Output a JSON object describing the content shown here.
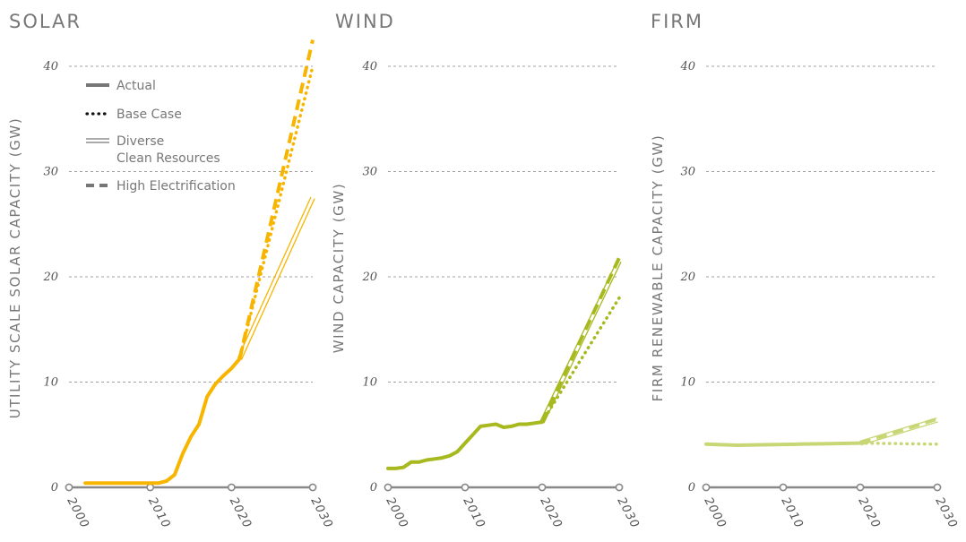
{
  "chart_data": [
    {
      "type": "line",
      "title": "SOLAR",
      "ylabel": "UTILITY SCALE SOLAR CAPACITY (GW)",
      "xlabel": "",
      "xlim": [
        2000,
        2030
      ],
      "ylim": [
        0,
        40
      ],
      "xticks": [
        "2000",
        "2010",
        "2020",
        "2030"
      ],
      "yticks": [
        "0",
        "10",
        "20",
        "30",
        "40"
      ],
      "grid": true,
      "color": "#f7b500",
      "legend": [
        {
          "label": "Actual",
          "style": "solid"
        },
        {
          "label": "Base Case",
          "style": "dotted"
        },
        {
          "label": "Diverse\nClean Resources",
          "style": "double"
        },
        {
          "label": "High Electrification",
          "style": "dashed"
        }
      ],
      "legend_placement": "top-left",
      "series": [
        {
          "name": "Actual",
          "style": "solid",
          "x": [
            2002,
            2005,
            2008,
            2011,
            2012,
            2013,
            2014,
            2015,
            2016,
            2017,
            2018,
            2019,
            2020,
            2021
          ],
          "y": [
            0.4,
            0.4,
            0.4,
            0.4,
            0.6,
            1.2,
            3.2,
            4.8,
            6.0,
            8.6,
            9.8,
            10.6,
            11.3,
            12.2
          ]
        },
        {
          "name": "Base Case",
          "style": "dotted",
          "x": [
            2021,
            2030
          ],
          "y": [
            12.2,
            40.0
          ]
        },
        {
          "name": "Diverse Clean Resources",
          "style": "double",
          "x": [
            2021,
            2030
          ],
          "y": [
            12.2,
            27.5
          ]
        },
        {
          "name": "High Electrification",
          "style": "dashed",
          "x": [
            2021,
            2030
          ],
          "y": [
            12.2,
            42.5
          ]
        }
      ]
    },
    {
      "type": "line",
      "title": "WIND",
      "ylabel": "WIND CAPACITY (GW)",
      "xlabel": "",
      "xlim": [
        2000,
        2030
      ],
      "ylim": [
        0,
        40
      ],
      "xticks": [
        "2000",
        "2010",
        "2020",
        "2030"
      ],
      "yticks": [
        "0",
        "10",
        "20",
        "30",
        "40"
      ],
      "grid": true,
      "color": "#a7b91e",
      "series": [
        {
          "name": "Actual",
          "style": "solid",
          "x": [
            2000,
            2001,
            2002,
            2003,
            2004,
            2005,
            2006,
            2007,
            2008,
            2009,
            2010,
            2011,
            2012,
            2013,
            2014,
            2015,
            2016,
            2017,
            2018,
            2019,
            2020
          ],
          "y": [
            1.8,
            1.8,
            1.9,
            2.4,
            2.4,
            2.6,
            2.7,
            2.8,
            3.0,
            3.4,
            4.2,
            5.0,
            5.8,
            5.9,
            6.0,
            5.7,
            5.8,
            6.0,
            6.0,
            6.1,
            6.2
          ]
        },
        {
          "name": "Base Case",
          "style": "dotted",
          "x": [
            2020,
            2030
          ],
          "y": [
            6.2,
            18.0
          ]
        },
        {
          "name": "Diverse Clean Resources",
          "style": "double",
          "x": [
            2020,
            2030
          ],
          "y": [
            6.2,
            21.5
          ]
        },
        {
          "name": "High Electrification",
          "style": "dashed",
          "x": [
            2020,
            2030
          ],
          "y": [
            6.2,
            21.8
          ]
        }
      ]
    },
    {
      "type": "line",
      "title": "FIRM",
      "ylabel": "FIRM RENEWABLE CAPACITY (GW)",
      "xlabel": "",
      "xlim": [
        2000,
        2030
      ],
      "ylim": [
        0,
        40
      ],
      "xticks": [
        "2000",
        "2010",
        "2020",
        "2030"
      ],
      "yticks": [
        "0",
        "10",
        "20",
        "30",
        "40"
      ],
      "grid": true,
      "color": "#c9d675",
      "series": [
        {
          "name": "Actual",
          "style": "solid",
          "x": [
            2000,
            2004,
            2008,
            2012,
            2016,
            2020
          ],
          "y": [
            4.1,
            4.0,
            4.05,
            4.1,
            4.15,
            4.2
          ]
        },
        {
          "name": "Base Case",
          "style": "dotted",
          "x": [
            2020,
            2030
          ],
          "y": [
            4.2,
            4.1
          ]
        },
        {
          "name": "Diverse Clean Resources",
          "style": "double",
          "x": [
            2020,
            2030
          ],
          "y": [
            4.2,
            6.4
          ]
        },
        {
          "name": "High Electrification",
          "style": "dashed",
          "x": [
            2020,
            2030
          ],
          "y": [
            4.2,
            6.5
          ]
        }
      ]
    }
  ]
}
